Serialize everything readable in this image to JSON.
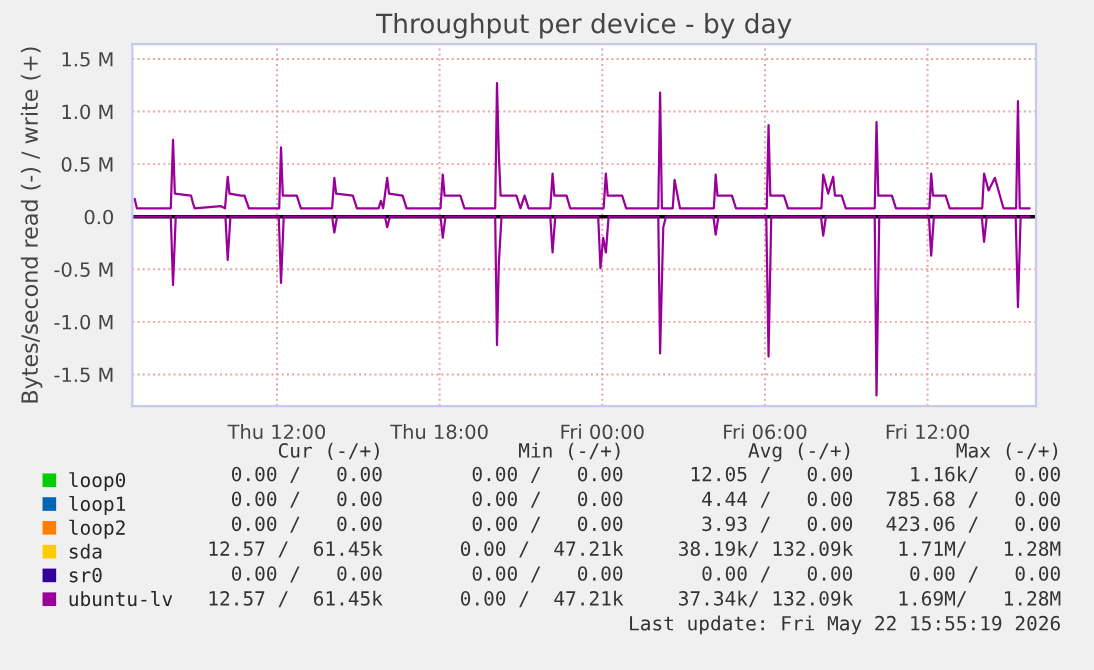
{
  "chart_data": {
    "type": "line",
    "title": "Throughput per device - by day",
    "ylabel": "Bytes/second read (-) / write (+)",
    "xlim": [
      "2026-05-21T06:40",
      "2026-05-22T16:00"
    ],
    "xticks": [
      {
        "value": "2026-05-21T12:00",
        "label": "Thu 12:00"
      },
      {
        "value": "2026-05-21T18:00",
        "label": "Thu 18:00"
      },
      {
        "value": "2026-05-22T00:00",
        "label": "Fri 00:00"
      },
      {
        "value": "2026-05-22T06:00",
        "label": "Fri 06:00"
      },
      {
        "value": "2026-05-22T12:00",
        "label": "Fri 12:00"
      }
    ],
    "ylim": [
      -1.8,
      1.64
    ],
    "yticks": [
      {
        "value": -1.5,
        "label": "-1.5 M"
      },
      {
        "value": -1.0,
        "label": "-1.0 M"
      },
      {
        "value": -0.5,
        "label": "-0.5 M"
      },
      {
        "value": 0.0,
        "label": "0.0"
      },
      {
        "value": 0.5,
        "label": "0.5 M"
      },
      {
        "value": 1.0,
        "label": "1.0 M"
      },
      {
        "value": 1.5,
        "label": "1.5 M"
      }
    ],
    "grid": true,
    "legend": "bottom left",
    "line_style": "solid",
    "marker": "none",
    "ref_lines": [
      {
        "axis": "y",
        "value": 0,
        "color": "#000000"
      }
    ],
    "series": [
      {
        "name": "loop0",
        "color": "#00cc00"
      },
      {
        "name": "loop1",
        "color": "#0066b3"
      },
      {
        "name": "loop2",
        "color": "#ff8000"
      },
      {
        "name": "sda",
        "color": "#ffcc00"
      },
      {
        "name": "sr0",
        "color": "#330099"
      },
      {
        "name": "ubuntu-lv",
        "color": "#990099",
        "x": [
          "2026-05-21T06:45",
          "2026-05-21T06:50",
          "2026-05-21T08:05",
          "2026-05-21T08:10",
          "2026-05-21T08:14",
          "2026-05-21T08:50",
          "2026-05-21T08:54",
          "2026-05-21T08:58",
          "2026-05-21T09:56",
          "2026-05-21T10:05",
          "2026-05-21T10:11",
          "2026-05-21T10:15",
          "2026-05-21T10:40",
          "2026-05-21T10:48",
          "2026-05-21T10:58",
          "2026-05-21T12:05",
          "2026-05-21T12:09",
          "2026-05-21T12:13",
          "2026-05-21T12:44",
          "2026-05-21T12:53",
          "2026-05-21T14:02",
          "2026-05-21T14:07",
          "2026-05-21T14:11",
          "2026-05-21T14:48",
          "2026-05-21T14:57",
          "2026-05-21T15:45",
          "2026-05-21T15:50",
          "2026-05-21T15:55",
          "2026-05-21T16:04",
          "2026-05-21T16:08",
          "2026-05-21T16:38",
          "2026-05-21T16:47",
          "2026-05-21T18:02",
          "2026-05-21T18:07",
          "2026-05-21T18:11",
          "2026-05-21T18:46",
          "2026-05-21T18:55",
          "2026-05-21T20:03",
          "2026-05-21T20:07",
          "2026-05-21T20:11",
          "2026-05-21T20:15",
          "2026-05-21T20:50",
          "2026-05-21T20:59",
          "2026-05-21T21:08",
          "2026-05-21T21:17",
          "2026-05-21T22:05",
          "2026-05-21T22:10",
          "2026-05-21T22:14",
          "2026-05-21T22:41",
          "2026-05-21T22:49",
          "2026-05-22T00:03",
          "2026-05-22T00:08",
          "2026-05-22T00:12",
          "2026-05-22T00:44",
          "2026-05-22T00:53",
          "2026-05-22T02:04",
          "2026-05-22T02:08",
          "2026-05-22T02:12",
          "2026-05-22T02:36",
          "2026-05-22T02:40",
          "2026-05-22T02:52",
          "2026-05-22T04:07",
          "2026-05-22T04:11",
          "2026-05-22T04:15",
          "2026-05-22T04:47",
          "2026-05-22T04:56",
          "2026-05-22T06:04",
          "2026-05-22T06:08",
          "2026-05-22T06:12",
          "2026-05-22T06:42",
          "2026-05-22T06:51",
          "2026-05-22T08:05",
          "2026-05-22T08:09",
          "2026-05-22T08:20",
          "2026-05-22T08:31",
          "2026-05-22T08:35",
          "2026-05-22T08:50",
          "2026-05-22T08:59",
          "2026-05-22T10:03",
          "2026-05-22T10:07",
          "2026-05-22T10:11",
          "2026-05-22T10:41",
          "2026-05-22T10:50",
          "2026-05-22T12:04",
          "2026-05-22T12:08",
          "2026-05-22T12:12",
          "2026-05-22T12:40",
          "2026-05-22T12:49",
          "2026-05-22T14:01",
          "2026-05-22T14:05",
          "2026-05-22T14:15",
          "2026-05-22T14:29",
          "2026-05-22T14:48",
          "2026-05-22T15:16",
          "2026-05-22T15:20",
          "2026-05-22T15:24",
          "2026-05-22T15:46"
        ],
        "values": [
          0.17,
          0.08,
          0.08,
          0.73,
          0.22,
          0.2,
          0.13,
          0.08,
          0.1,
          0.08,
          0.38,
          0.22,
          0.2,
          0.2,
          0.08,
          0.08,
          0.66,
          0.2,
          0.2,
          0.08,
          0.08,
          0.37,
          0.22,
          0.2,
          0.08,
          0.08,
          0.15,
          0.08,
          0.37,
          0.22,
          0.2,
          0.08,
          0.08,
          0.4,
          0.2,
          0.2,
          0.08,
          0.08,
          1.27,
          0.6,
          0.2,
          0.2,
          0.08,
          0.2,
          0.08,
          0.08,
          0.41,
          0.2,
          0.2,
          0.08,
          0.08,
          0.41,
          0.2,
          0.2,
          0.08,
          0.08,
          1.18,
          0.08,
          0.08,
          0.35,
          0.08,
          0.08,
          0.4,
          0.2,
          0.2,
          0.08,
          0.08,
          0.87,
          0.2,
          0.2,
          0.08,
          0.08,
          0.4,
          0.22,
          0.38,
          0.2,
          0.2,
          0.08,
          0.08,
          0.9,
          0.2,
          0.2,
          0.08,
          0.08,
          0.41,
          0.2,
          0.2,
          0.08,
          0.08,
          0.41,
          0.25,
          0.37,
          0.08,
          0.08,
          1.1,
          0.08,
          0.08
        ]
      },
      {
        "color": "#990099",
        "x": [
          "2026-05-21T06:45",
          "2026-05-21T08:05",
          "2026-05-21T08:10",
          "2026-05-21T08:16",
          "2026-05-21T10:06",
          "2026-05-21T10:11",
          "2026-05-21T10:17",
          "2026-05-21T12:04",
          "2026-05-21T12:09",
          "2026-05-21T12:15",
          "2026-05-21T14:02",
          "2026-05-21T14:07",
          "2026-05-21T14:13",
          "2026-05-21T15:59",
          "2026-05-21T16:04",
          "2026-05-21T16:10",
          "2026-05-21T18:02",
          "2026-05-21T18:07",
          "2026-05-21T18:13",
          "2026-05-21T20:03",
          "2026-05-21T20:07",
          "2026-05-21T20:11",
          "2026-05-21T20:17",
          "2026-05-21T22:05",
          "2026-05-21T22:10",
          "2026-05-21T22:16",
          "2026-05-21T23:51",
          "2026-05-21T23:56",
          "2026-05-22T00:02",
          "2026-05-22T00:08",
          "2026-05-22T00:14",
          "2026-05-22T02:04",
          "2026-05-22T02:08",
          "2026-05-22T02:15",
          "2026-05-22T02:21",
          "2026-05-22T04:06",
          "2026-05-22T04:11",
          "2026-05-22T04:17",
          "2026-05-22T06:03",
          "2026-05-22T06:08",
          "2026-05-22T06:14",
          "2026-05-22T08:04",
          "2026-05-22T08:09",
          "2026-05-22T08:15",
          "2026-05-22T10:03",
          "2026-05-22T10:07",
          "2026-05-22T10:13",
          "2026-05-22T12:03",
          "2026-05-22T12:08",
          "2026-05-22T12:14",
          "2026-05-22T14:00",
          "2026-05-22T14:05",
          "2026-05-22T14:11",
          "2026-05-22T15:15",
          "2026-05-22T15:20",
          "2026-05-22T15:26",
          "2026-05-22T15:46"
        ],
        "values": [
          0,
          0,
          -0.65,
          0,
          0,
          -0.41,
          0,
          0,
          -0.63,
          0,
          0,
          -0.15,
          0,
          0,
          -0.1,
          0,
          0,
          -0.2,
          0,
          0,
          -1.22,
          -0.45,
          0,
          0,
          -0.34,
          0,
          0,
          -0.49,
          -0.2,
          -0.34,
          0,
          0,
          -1.3,
          -0.1,
          0,
          0,
          -0.17,
          0,
          0,
          -1.33,
          0,
          0,
          -0.18,
          0,
          0,
          -1.7,
          0,
          0,
          -0.37,
          0,
          0,
          -0.24,
          0,
          0,
          -0.86,
          0,
          0
        ]
      }
    ],
    "annotations": [
      "Cur (-/+)",
      "Min (-/+)",
      "Avg (-/+)",
      "Max (-/+)",
      "0.00 /   0.00",
      "0.00 /   0.00",
      "12.05 /   0.00",
      "1.16k/   0.00",
      "0.00 /   0.00",
      "0.00 /   0.00",
      "4.44 /   0.00",
      "785.68 /   0.00",
      "0.00 /   0.00",
      "0.00 /   0.00",
      "3.93 /   0.00",
      "423.06 /   0.00",
      "12.57 /  61.45k",
      "0.00 /  47.21k",
      "38.19k/ 132.09k",
      "1.71M/   1.28M",
      "0.00 /   0.00",
      "0.00 /   0.00",
      "0.00 /   0.00",
      "0.00 /   0.00",
      "12.57 /  61.45k",
      "0.00 /  47.21k",
      "37.34k/ 132.09k",
      "1.69M/   1.28M",
      "Last update: Fri May 22 15:55:19 2026"
    ]
  }
}
